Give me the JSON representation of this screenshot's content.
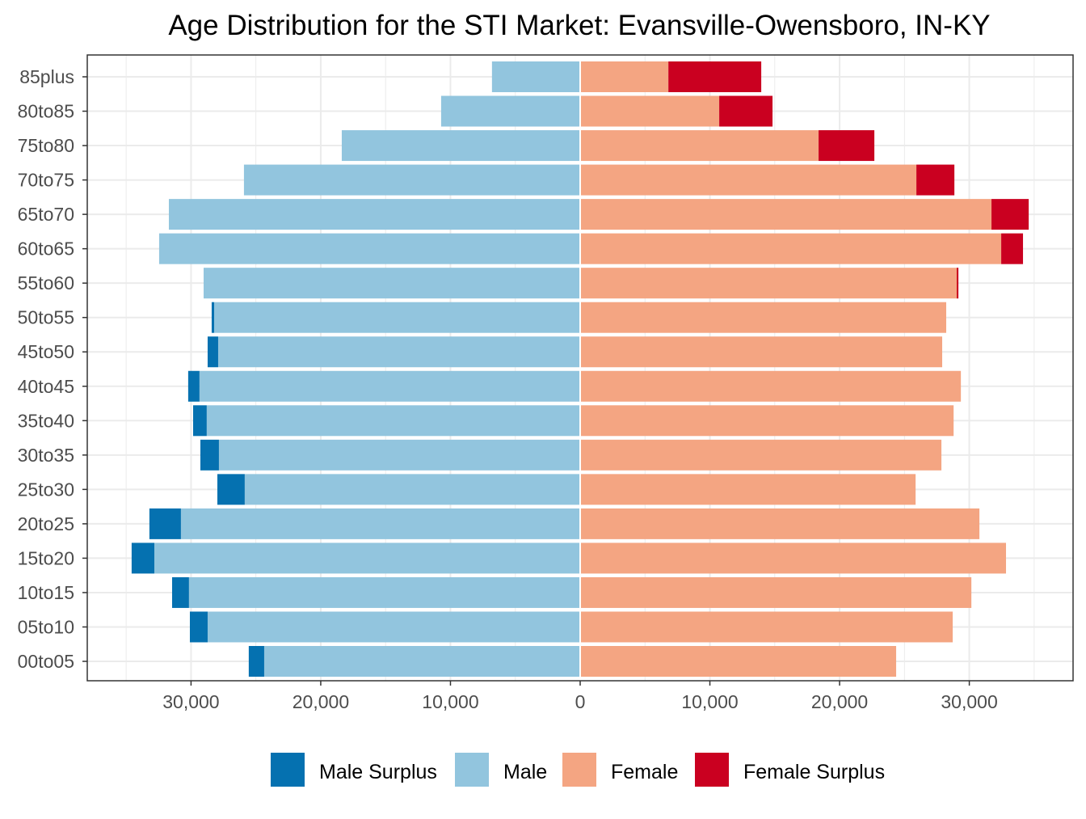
{
  "chart_data": {
    "type": "bar",
    "orientation": "horizontal",
    "title": "Age Distribution for the STI Market: Evansville-Owensboro, IN-KY",
    "xlabel": "",
    "ylabel": "",
    "xlim": [
      -38000,
      38000
    ],
    "x_ticks": [
      -30000,
      -20000,
      -10000,
      0,
      10000,
      20000,
      30000
    ],
    "x_tick_labels": [
      "30,000",
      "20,000",
      "10,000",
      "0",
      "10,000",
      "20,000",
      "30,000"
    ],
    "grid": true,
    "legend_position": "bottom",
    "legend": [
      "Male Surplus",
      "Male",
      "Female",
      "Female Surplus"
    ],
    "colors": {
      "Male Surplus": "#0571b0",
      "Male": "#92c5de",
      "Female": "#f4a582",
      "Female Surplus": "#ca0020"
    },
    "categories": [
      "85plus",
      "80to85",
      "75to80",
      "70to75",
      "65to70",
      "60to65",
      "55to60",
      "50to55",
      "45to50",
      "40to45",
      "35to40",
      "30to35",
      "25to30",
      "20to25",
      "15to20",
      "10to15",
      "05to10",
      "00to05"
    ],
    "male_totals": [
      6800,
      10720,
      18380,
      25920,
      31710,
      32460,
      29030,
      28410,
      28720,
      30220,
      29840,
      29280,
      27970,
      33210,
      34580,
      31460,
      30090,
      25550
    ],
    "female_totals": [
      13960,
      14830,
      22680,
      28850,
      34580,
      34140,
      29160,
      28220,
      27910,
      29350,
      28790,
      27850,
      25860,
      30780,
      32830,
      30160,
      28720,
      24360
    ]
  }
}
